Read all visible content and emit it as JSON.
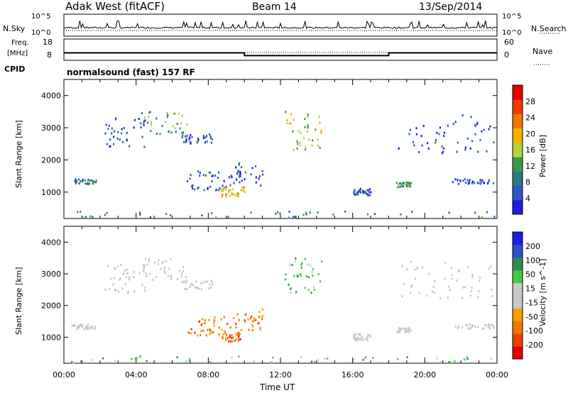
{
  "header": {
    "title": "Adak West (fitACF)",
    "beam": "Beam 14",
    "date": "13/Sep/2014"
  },
  "strip_labels": {
    "nsky": "N.Sky",
    "nsearch": "N.Search",
    "freq_line1": "Freq.",
    "freq_line2": "[MHz]",
    "nave": "Nave",
    "cpid": "CPID",
    "cpid_text": "normalsound (fast) 157 RF"
  },
  "strip_ticks": {
    "noise_left": [
      "10^5",
      "10^0"
    ],
    "noise_right": [
      "10^5",
      "10^0"
    ],
    "freq_left": [
      "18",
      "8"
    ],
    "nave_right": [
      "60",
      "0"
    ]
  },
  "colors": {
    "power_scale": [
      "#1e1ee6",
      "#2f55c8",
      "#2f7a80",
      "#3a9a4a",
      "#b4d23c",
      "#f0b400",
      "#f07800",
      "#f03c00",
      "#e60000"
    ],
    "velocity_scale": [
      "#e60000",
      "#f03c00",
      "#f07800",
      "#f5a000",
      "#c8c8c8",
      "#c8c8c8",
      "#46c846",
      "#2f8a50",
      "#2f50c8",
      "#1e1ee6"
    ],
    "velocity_ground": "#c8c8c8"
  },
  "chart_data": [
    {
      "type": "line",
      "title": "",
      "xlabel": "",
      "ylabel": "N.Sky / N.Search",
      "xlim": [
        0,
        24
      ],
      "series": [
        {
          "name": "N.Sky",
          "values": "noise level near 10^2 throughout, spikes to ~10^3"
        }
      ]
    },
    {
      "type": "line",
      "xlabel": "",
      "ylabel": "Freq. [MHz]",
      "xlim": [
        0,
        24
      ],
      "series": [
        {
          "name": "Freq.",
          "x": [
            0,
            10,
            10,
            18,
            18,
            24
          ],
          "values": [
            11.5,
            11.5,
            10.2,
            10.2,
            11.5,
            11.5
          ]
        },
        {
          "name": "Nave",
          "x": [
            0,
            24
          ],
          "values": [
            18,
            18
          ]
        }
      ]
    },
    {
      "type": "heatmap",
      "title": "",
      "xlabel": "",
      "ylabel": "Slant Range [km]",
      "xlim": [
        0,
        24
      ],
      "ylim": [
        180,
        4500
      ],
      "colorbar_label": "Power [dB]",
      "colorbar_ticks": [
        "4",
        "8",
        "12",
        "16",
        "20",
        "24",
        "28"
      ],
      "regions": [
        {
          "t": [
            0.4,
            1.8
          ],
          "r": [
            1250,
            1400
          ],
          "level": 2
        },
        {
          "t": [
            2.2,
            4.5
          ],
          "r": [
            2400,
            3300
          ],
          "level": 1
        },
        {
          "t": [
            4.2,
            6.8
          ],
          "r": [
            2800,
            3500
          ],
          "level": 3
        },
        {
          "t": [
            6.5,
            8.2
          ],
          "r": [
            2500,
            2800
          ],
          "level": 1
        },
        {
          "t": [
            6.8,
            9.0
          ],
          "r": [
            1050,
            1650
          ],
          "level": 1
        },
        {
          "t": [
            8.7,
            10.0
          ],
          "r": [
            850,
            1150
          ],
          "level": 5
        },
        {
          "t": [
            9.0,
            11.0
          ],
          "r": [
            1200,
            1900
          ],
          "level": 1
        },
        {
          "t": [
            12.2,
            14.3
          ],
          "r": [
            2300,
            3500
          ],
          "level": 4
        },
        {
          "t": [
            16.0,
            17.0
          ],
          "r": [
            900,
            1100
          ],
          "level": 1
        },
        {
          "t": [
            18.4,
            19.2
          ],
          "r": [
            1150,
            1300
          ],
          "level": 3
        },
        {
          "t": [
            18.5,
            23.8
          ],
          "r": [
            2200,
            3400
          ],
          "level": 1
        },
        {
          "t": [
            21.5,
            23.8
          ],
          "r": [
            1250,
            1400
          ],
          "level": 1
        },
        {
          "t": [
            0.0,
            24.0
          ],
          "r": [
            200,
            400
          ],
          "level": 2
        }
      ]
    },
    {
      "type": "heatmap",
      "title": "",
      "xlabel": "Time UT",
      "ylabel": "Slant Range [km]",
      "xlim": [
        0,
        24
      ],
      "ylim": [
        180,
        4500
      ],
      "x_tick_labels": [
        "00:00",
        "04:00",
        "08:00",
        "12:00",
        "16:00",
        "20:00",
        "00:00"
      ],
      "y_tick_labels": [
        "1000",
        "2000",
        "3000",
        "4000"
      ],
      "colorbar_label": "Velocity [m s^-1]",
      "colorbar_ticks": [
        "-200",
        "-100",
        "-50",
        "-15",
        "15",
        "50",
        "100",
        "200"
      ],
      "regions": [
        {
          "t": [
            0.4,
            1.8
          ],
          "r": [
            1250,
            1400
          ],
          "level": 4
        },
        {
          "t": [
            2.2,
            4.5
          ],
          "r": [
            2400,
            3300
          ],
          "level": 4
        },
        {
          "t": [
            4.2,
            6.8
          ],
          "r": [
            2800,
            3500
          ],
          "level": 4
        },
        {
          "t": [
            6.5,
            8.2
          ],
          "r": [
            2500,
            2800
          ],
          "level": 4
        },
        {
          "t": [
            6.8,
            9.0
          ],
          "r": [
            1050,
            1650
          ],
          "level": 2
        },
        {
          "t": [
            8.7,
            10.0
          ],
          "r": [
            850,
            1150
          ],
          "level": 2
        },
        {
          "t": [
            9.0,
            11.0
          ],
          "r": [
            1200,
            1900
          ],
          "level": 2
        },
        {
          "t": [
            12.2,
            14.3
          ],
          "r": [
            2300,
            3500
          ],
          "level": 6
        },
        {
          "t": [
            16.0,
            17.0
          ],
          "r": [
            900,
            1100
          ],
          "level": 4
        },
        {
          "t": [
            18.4,
            19.2
          ],
          "r": [
            1150,
            1300
          ],
          "level": 4
        },
        {
          "t": [
            18.5,
            23.8
          ],
          "r": [
            2200,
            3400
          ],
          "level": 4
        },
        {
          "t": [
            21.5,
            23.8
          ],
          "r": [
            1250,
            1400
          ],
          "level": 4
        },
        {
          "t": [
            0.0,
            24.0
          ],
          "r": [
            200,
            400
          ],
          "level": 6
        }
      ]
    }
  ]
}
